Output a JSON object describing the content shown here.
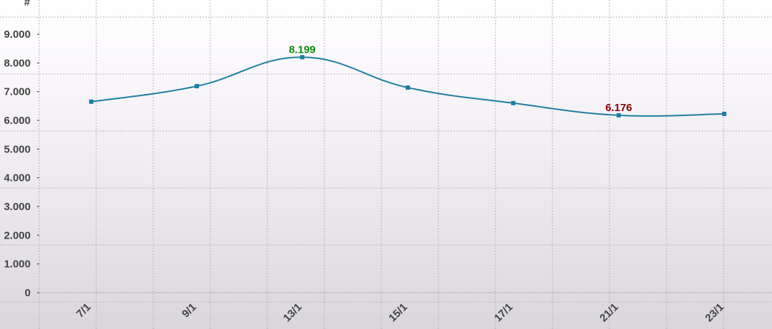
{
  "chart_data": {
    "type": "line",
    "ylabel": "#",
    "categories": [
      "7/1",
      "9/1",
      "13/1",
      "15/1",
      "17/1",
      "21/1",
      "23/1"
    ],
    "series": [
      {
        "values": [
          6650,
          7190,
          8199,
          7140,
          6600,
          6176,
          6225
        ]
      }
    ],
    "ylim": [
      0,
      9000
    ],
    "yticks": [
      "0",
      "1.000",
      "2.000",
      "3.000",
      "4.000",
      "5.000",
      "6.000",
      "7.000",
      "8.000",
      "9.000"
    ],
    "grid": true,
    "annotations": [
      {
        "index": 2,
        "text": "8.199",
        "color": "#0a8a0a"
      },
      {
        "index": 5,
        "text": "6.176",
        "color": "#8b0000"
      }
    ],
    "line_color": "#1f7f9f"
  }
}
